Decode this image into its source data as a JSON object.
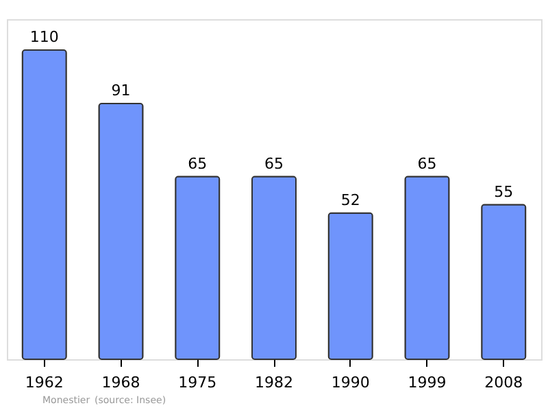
{
  "chart_data": {
    "type": "bar",
    "categories": [
      "1962",
      "1968",
      "1975",
      "1982",
      "1990",
      "1999",
      "2008"
    ],
    "values": [
      110,
      91,
      65,
      65,
      52,
      65,
      55
    ],
    "color": "#6f94fc",
    "data_labels": true,
    "grid": false,
    "annotations": [
      "Monestier",
      "(source: Insee)"
    ]
  }
}
